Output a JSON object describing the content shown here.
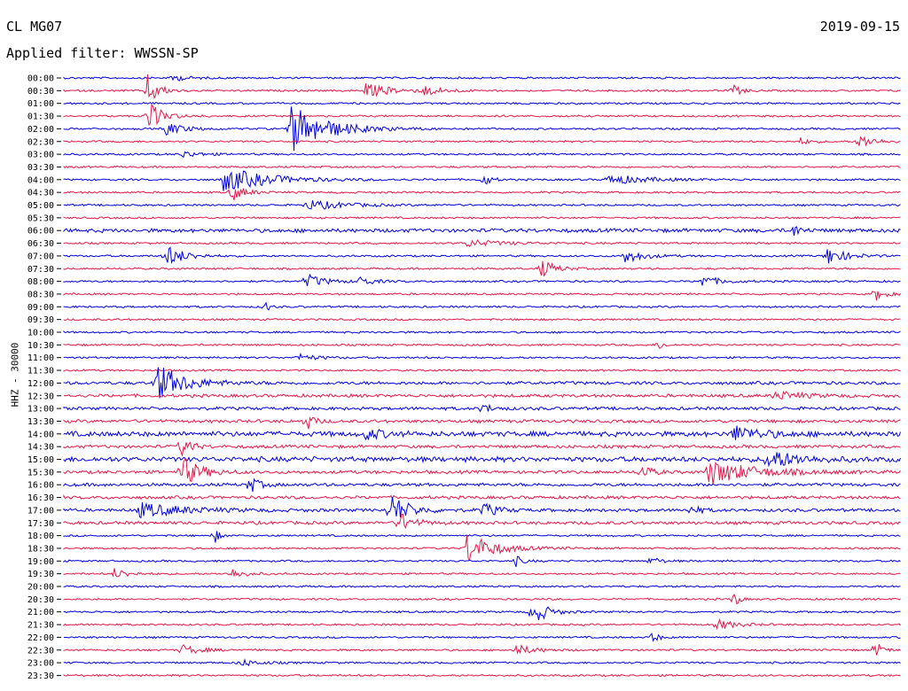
{
  "header": {
    "station": "CL MG07",
    "date": "2019-09-15",
    "filter": "Applied filter: WWSSN-SP",
    "channel": "HHZ - 30000"
  },
  "colors": {
    "trace_a": "#0000e6",
    "trace_b": "#e8174a"
  },
  "chart_data": {
    "type": "helicorder",
    "ytick_labels": [
      "00:00",
      "00:30",
      "01:00",
      "01:30",
      "02:00",
      "02:30",
      "03:00",
      "03:30",
      "04:00",
      "04:30",
      "05:00",
      "05:30",
      "06:00",
      "06:30",
      "07:00",
      "07:30",
      "08:00",
      "08:30",
      "09:00",
      "09:30",
      "10:00",
      "10:30",
      "11:00",
      "11:30",
      "12:00",
      "12:30",
      "13:00",
      "13:30",
      "14:00",
      "14:30",
      "15:00",
      "15:30",
      "16:00",
      "16:30",
      "17:00",
      "17:30",
      "18:00",
      "18:30",
      "19:00",
      "19:30",
      "20:00",
      "20:30",
      "21:00",
      "21:30",
      "22:00",
      "22:30",
      "23:00",
      "23:30"
    ],
    "ylabel": "HHZ - 30000",
    "row_minutes": 30,
    "events": [
      {
        "row": 0,
        "x": 0.13,
        "amp": 4,
        "w": 0.015
      },
      {
        "row": 1,
        "x": 0.1,
        "amp": 18,
        "w": 0.012
      },
      {
        "row": 1,
        "x": 0.36,
        "amp": 8,
        "w": 0.03
      },
      {
        "row": 1,
        "x": 0.43,
        "amp": 5,
        "w": 0.02
      },
      {
        "row": 1,
        "x": 0.8,
        "amp": 6,
        "w": 0.01
      },
      {
        "row": 3,
        "x": 0.1,
        "amp": 18,
        "w": 0.015
      },
      {
        "row": 4,
        "x": 0.27,
        "amp": 28,
        "w": 0.04
      },
      {
        "row": 4,
        "x": 0.12,
        "amp": 8,
        "w": 0.02
      },
      {
        "row": 5,
        "x": 0.88,
        "amp": 4,
        "w": 0.01
      },
      {
        "row": 5,
        "x": 0.95,
        "amp": 9,
        "w": 0.015
      },
      {
        "row": 6,
        "x": 0.14,
        "amp": 4,
        "w": 0.02
      },
      {
        "row": 8,
        "x": 0.19,
        "amp": 14,
        "w": 0.05
      },
      {
        "row": 8,
        "x": 0.5,
        "amp": 9,
        "w": 0.008
      },
      {
        "row": 8,
        "x": 0.65,
        "amp": 6,
        "w": 0.04
      },
      {
        "row": 9,
        "x": 0.2,
        "amp": 10,
        "w": 0.015
      },
      {
        "row": 10,
        "x": 0.29,
        "amp": 6,
        "w": 0.04
      },
      {
        "row": 12,
        "x": 0.87,
        "amp": 8,
        "w": 0.008
      },
      {
        "row": 13,
        "x": 0.48,
        "amp": 4,
        "w": 0.04
      },
      {
        "row": 14,
        "x": 0.12,
        "amp": 14,
        "w": 0.02
      },
      {
        "row": 14,
        "x": 0.67,
        "amp": 8,
        "w": 0.02
      },
      {
        "row": 14,
        "x": 0.91,
        "amp": 11,
        "w": 0.02
      },
      {
        "row": 15,
        "x": 0.57,
        "amp": 11,
        "w": 0.015
      },
      {
        "row": 16,
        "x": 0.29,
        "amp": 8,
        "w": 0.02
      },
      {
        "row": 16,
        "x": 0.35,
        "amp": 6,
        "w": 0.015
      },
      {
        "row": 16,
        "x": 0.76,
        "amp": 7,
        "w": 0.02
      },
      {
        "row": 17,
        "x": 0.97,
        "amp": 8,
        "w": 0.01
      },
      {
        "row": 18,
        "x": 0.24,
        "amp": 7,
        "w": 0.005
      },
      {
        "row": 21,
        "x": 0.71,
        "amp": 8,
        "w": 0.005
      },
      {
        "row": 22,
        "x": 0.28,
        "amp": 4,
        "w": 0.02
      },
      {
        "row": 24,
        "x": 0.11,
        "amp": 22,
        "w": 0.03
      },
      {
        "row": 25,
        "x": 0.85,
        "amp": 5,
        "w": 0.03
      },
      {
        "row": 26,
        "x": 0.5,
        "amp": 6,
        "w": 0.01
      },
      {
        "row": 27,
        "x": 0.29,
        "amp": 10,
        "w": 0.008
      },
      {
        "row": 28,
        "x": 0.36,
        "amp": 6,
        "w": 0.02
      },
      {
        "row": 28,
        "x": 0.8,
        "amp": 9,
        "w": 0.03
      },
      {
        "row": 29,
        "x": 0.14,
        "amp": 14,
        "w": 0.01
      },
      {
        "row": 30,
        "x": 0.84,
        "amp": 12,
        "w": 0.03
      },
      {
        "row": 31,
        "x": 0.14,
        "amp": 18,
        "w": 0.02
      },
      {
        "row": 31,
        "x": 0.77,
        "amp": 14,
        "w": 0.05
      },
      {
        "row": 31,
        "x": 0.69,
        "amp": 10,
        "w": 0.01
      },
      {
        "row": 32,
        "x": 0.22,
        "amp": 12,
        "w": 0.01
      },
      {
        "row": 34,
        "x": 0.39,
        "amp": 18,
        "w": 0.02
      },
      {
        "row": 34,
        "x": 0.09,
        "amp": 8,
        "w": 0.05
      },
      {
        "row": 34,
        "x": 0.5,
        "amp": 9,
        "w": 0.015
      },
      {
        "row": 34,
        "x": 0.75,
        "amp": 7,
        "w": 0.008
      },
      {
        "row": 35,
        "x": 0.4,
        "amp": 12,
        "w": 0.015
      },
      {
        "row": 36,
        "x": 0.18,
        "amp": 9,
        "w": 0.005
      },
      {
        "row": 37,
        "x": 0.48,
        "amp": 18,
        "w": 0.03
      },
      {
        "row": 38,
        "x": 0.54,
        "amp": 6,
        "w": 0.008
      },
      {
        "row": 38,
        "x": 0.7,
        "amp": 6,
        "w": 0.01
      },
      {
        "row": 39,
        "x": 0.06,
        "amp": 6,
        "w": 0.015
      },
      {
        "row": 39,
        "x": 0.2,
        "amp": 6,
        "w": 0.015
      },
      {
        "row": 41,
        "x": 0.8,
        "amp": 12,
        "w": 0.005
      },
      {
        "row": 42,
        "x": 0.56,
        "amp": 16,
        "w": 0.015
      },
      {
        "row": 43,
        "x": 0.78,
        "amp": 6,
        "w": 0.02
      },
      {
        "row": 44,
        "x": 0.7,
        "amp": 8,
        "w": 0.008
      },
      {
        "row": 45,
        "x": 0.14,
        "amp": 6,
        "w": 0.02
      },
      {
        "row": 45,
        "x": 0.54,
        "amp": 6,
        "w": 0.02
      },
      {
        "row": 45,
        "x": 0.97,
        "amp": 10,
        "w": 0.008
      },
      {
        "row": 46,
        "x": 0.21,
        "amp": 4,
        "w": 0.02
      }
    ]
  }
}
